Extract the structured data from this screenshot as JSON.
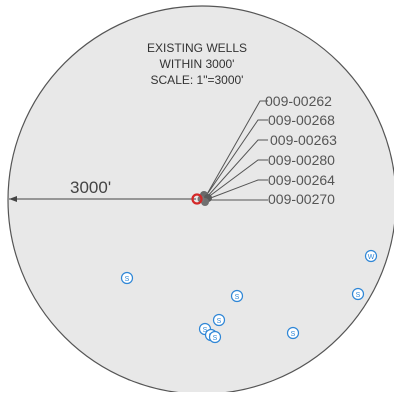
{
  "title": {
    "line1": "EXISTING WELLS",
    "line2": "WITHIN 3000'",
    "line3": "SCALE: 1\"=3000'"
  },
  "radius_label": "3000'",
  "well_labels": [
    "009-00262",
    "009-00268",
    "009-00263",
    "009-00280",
    "009-00264",
    "009-00270"
  ],
  "wells": {
    "s_symbol": "S",
    "w_symbol": "W",
    "s_count": 8,
    "w_count": 1
  },
  "colors": {
    "circle_fill": "#e8e8e8",
    "line": "#555555",
    "text": "#333333",
    "label_text": "#555555",
    "well_marker": "#2e86d6",
    "center_marker": "#d42828",
    "center_cluster": "#666666"
  }
}
